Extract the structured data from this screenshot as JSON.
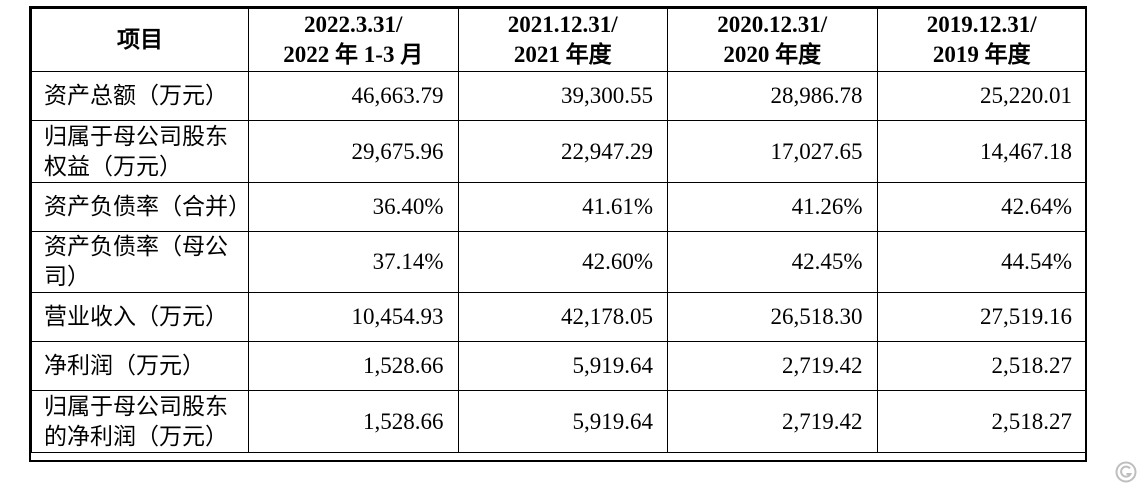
{
  "table": {
    "header": {
      "item": "项目",
      "columns": [
        {
          "line1": "2022.3.31/",
          "line2": "2022 年 1-3 月"
        },
        {
          "line1": "2021.12.31/",
          "line2": "2021 年度"
        },
        {
          "line1": "2020.12.31/",
          "line2": "2020 年度"
        },
        {
          "line1": "2019.12.31/",
          "line2": "2019 年度"
        }
      ]
    },
    "rows": [
      {
        "label": "资产总额（万元）",
        "values": [
          "46,663.79",
          "39,300.55",
          "28,986.78",
          "25,220.01"
        ]
      },
      {
        "label": "归属于母公司股东权益（万元）",
        "values": [
          "29,675.96",
          "22,947.29",
          "17,027.65",
          "14,467.18"
        ]
      },
      {
        "label": "资产负债率（合并）",
        "values": [
          "36.40%",
          "41.61%",
          "41.26%",
          "42.64%"
        ]
      },
      {
        "label": "资产负债率（母公司）",
        "values": [
          "37.14%",
          "42.60%",
          "42.45%",
          "44.54%"
        ]
      },
      {
        "label": "营业收入（万元）",
        "values": [
          "10,454.93",
          "42,178.05",
          "26,518.30",
          "27,519.16"
        ]
      },
      {
        "label": "净利润（万元）",
        "values": [
          "1,528.66",
          "5,919.64",
          "2,719.42",
          "2,518.27"
        ]
      },
      {
        "label": "归属于母公司股东的净利润（万元）",
        "values": [
          "1,528.66",
          "5,919.64",
          "2,719.42",
          "2,518.27"
        ]
      }
    ]
  },
  "watermark": {
    "logo_icon": "gelonghui-logo-icon",
    "color": "#8a8a8a"
  }
}
